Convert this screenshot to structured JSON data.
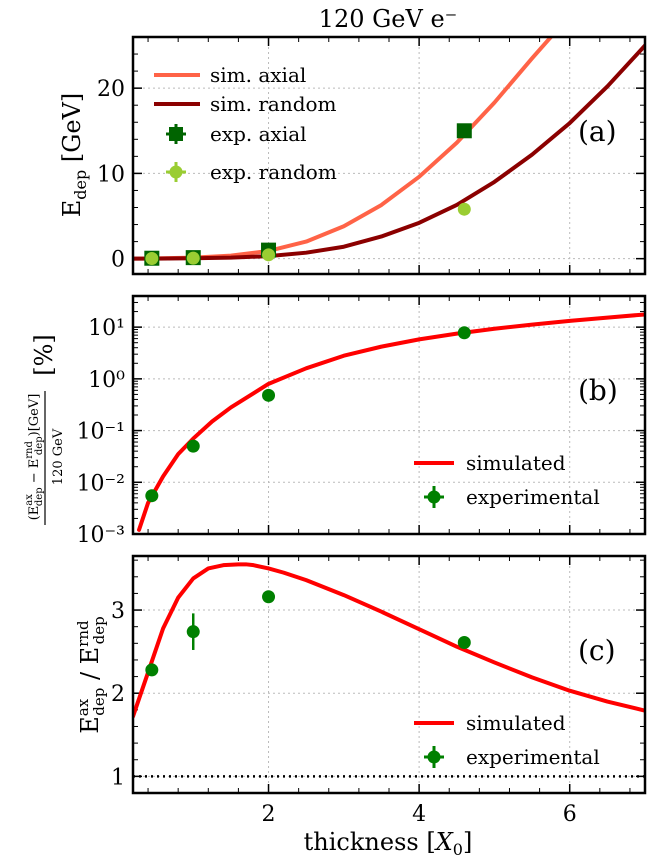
{
  "figure": {
    "title": "120 GeV e⁻",
    "xlabel": "thickness [X₀]",
    "x_ticks": [
      2,
      4,
      6
    ],
    "x_tick_labels": [
      "2",
      "4",
      "6"
    ]
  },
  "chart_data": [
    {
      "type": "line",
      "panel_label": "(a)",
      "xlim": [
        0.2,
        7.0
      ],
      "ylim": [
        -1.8,
        26
      ],
      "ylabel": "E_dep [GeV]",
      "y_ticks": [
        0,
        10,
        20
      ],
      "y_tick_labels": [
        "0",
        "10",
        "20"
      ],
      "grid": true,
      "legend_position": "top-left",
      "series": [
        {
          "name": "sim. axial",
          "kind": "line",
          "color": "#ff6347",
          "x": [
            0.2,
            0.5,
            1.0,
            1.5,
            2.0,
            2.5,
            3.0,
            3.5,
            4.0,
            4.5,
            5.0,
            5.5,
            5.8
          ],
          "y": [
            0.0,
            0.03,
            0.12,
            0.35,
            0.9,
            2.0,
            3.8,
            6.3,
            9.6,
            13.6,
            18.3,
            23.5,
            26.5
          ]
        },
        {
          "name": "sim. random",
          "kind": "line",
          "color": "#8b0000",
          "x": [
            0.2,
            0.5,
            1.0,
            1.5,
            2.0,
            2.5,
            3.0,
            3.5,
            4.0,
            4.5,
            5.0,
            5.5,
            6.0,
            6.5,
            7.0
          ],
          "y": [
            0.0,
            0.0,
            0.05,
            0.12,
            0.3,
            0.7,
            1.4,
            2.6,
            4.2,
            6.3,
            9.0,
            12.2,
            15.9,
            20.2,
            25.0
          ]
        },
        {
          "name": "exp. axial",
          "kind": "points",
          "marker": "square",
          "color": "#006400",
          "x": [
            0.45,
            1.0,
            2.0,
            4.6
          ],
          "y": [
            0.05,
            0.12,
            1.0,
            15.0
          ]
        },
        {
          "name": "exp. random",
          "kind": "points",
          "marker": "circle",
          "color": "#9acd32",
          "x": [
            0.45,
            1.0,
            2.0,
            4.6
          ],
          "y": [
            0.02,
            0.06,
            0.45,
            5.8
          ]
        }
      ]
    },
    {
      "type": "line",
      "panel_label": "(b)",
      "xlim": [
        0.2,
        7.0
      ],
      "ylim": [
        0.001,
        40
      ],
      "yscale": "log",
      "ylabel": "(E_dep^ax − E_dep^rnd)[GeV] / 120 GeV  [%]",
      "y_ticks": [
        0.001,
        0.01,
        0.1,
        1,
        10
      ],
      "y_tick_labels": [
        "10⁻³",
        "10⁻²",
        "10⁻¹",
        "10⁰",
        "10¹"
      ],
      "grid": true,
      "legend_position": "lower-right",
      "series": [
        {
          "name": "simulated",
          "kind": "line",
          "color": "#ff0000",
          "x": [
            0.28,
            0.4,
            0.6,
            0.8,
            1.0,
            1.25,
            1.5,
            2.0,
            2.5,
            3.0,
            3.5,
            4.0,
            4.5,
            5.0,
            5.5,
            6.0,
            6.5,
            7.0
          ],
          "y": [
            0.0012,
            0.004,
            0.013,
            0.035,
            0.07,
            0.15,
            0.28,
            0.8,
            1.6,
            2.8,
            4.2,
            5.8,
            7.5,
            9.3,
            11.2,
            13.2,
            15.3,
            17.6
          ]
        },
        {
          "name": "experimental",
          "kind": "points",
          "marker": "circle",
          "color": "#008000",
          "x": [
            0.45,
            1.0,
            2.0,
            4.6
          ],
          "y": [
            0.0055,
            0.05,
            0.48,
            7.8
          ]
        }
      ]
    },
    {
      "type": "line",
      "panel_label": "(c)",
      "xlim": [
        0.2,
        7.0
      ],
      "ylim": [
        0.8,
        3.65
      ],
      "ylabel": "E_dep^ax / E_dep^rnd",
      "y_ticks": [
        1,
        2,
        3
      ],
      "y_tick_labels": [
        "1",
        "2",
        "3"
      ],
      "grid": true,
      "legend_position": "lower-right",
      "series": [
        {
          "name": "simulated",
          "kind": "line",
          "color": "#ff0000",
          "x": [
            0.2,
            0.4,
            0.6,
            0.8,
            1.0,
            1.2,
            1.4,
            1.6,
            1.7,
            1.8,
            2.0,
            2.2,
            2.5,
            3.0,
            3.5,
            4.0,
            4.5,
            5.0,
            5.5,
            6.0,
            6.5,
            7.0
          ],
          "y": [
            1.72,
            2.25,
            2.78,
            3.15,
            3.38,
            3.5,
            3.54,
            3.55,
            3.55,
            3.54,
            3.5,
            3.45,
            3.36,
            3.18,
            2.98,
            2.77,
            2.56,
            2.37,
            2.19,
            2.03,
            1.9,
            1.79
          ]
        },
        {
          "name": "experimental",
          "kind": "points",
          "marker": "circle",
          "color": "#008000",
          "x": [
            0.45,
            1.0,
            2.0,
            4.6
          ],
          "y": [
            2.28,
            2.74,
            3.16,
            2.61
          ],
          "yerr": [
            0.07,
            0.22,
            0.0,
            0.0
          ]
        },
        {
          "kind": "hline",
          "y": 1,
          "color": "#000000",
          "style": "dotted"
        }
      ]
    }
  ]
}
